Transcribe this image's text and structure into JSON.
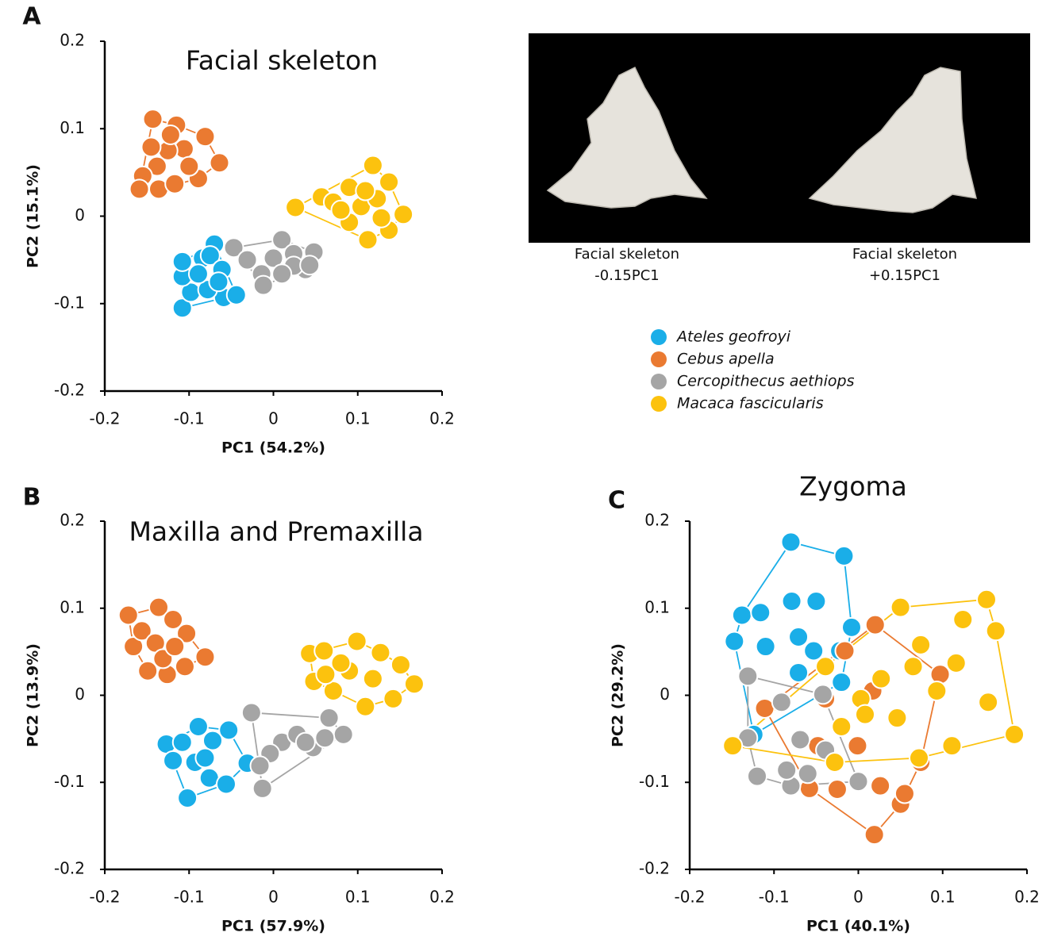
{
  "chart_data": [
    {
      "type": "scatter",
      "panel": "A",
      "title": "Facial skeleton",
      "x_label": "PC1 (54.2%)",
      "y_label": "PC2 (15.1%)",
      "xlim": [
        -0.2,
        0.2
      ],
      "ylim": [
        -0.2,
        0.2
      ],
      "xticks": [
        -0.2,
        -0.1,
        0,
        0.1,
        0.2
      ],
      "yticks": [
        -0.2,
        -0.1,
        0,
        0.1,
        0.2
      ],
      "series": [
        {
          "name": "Ateles geofroyi",
          "color": "#1aaee8",
          "x": [
            -0.108,
            -0.098,
            -0.108,
            -0.108,
            -0.084,
            -0.07,
            -0.075,
            -0.061,
            -0.059,
            -0.044,
            -0.078,
            -0.089,
            -0.065
          ],
          "y": [
            -0.105,
            -0.087,
            -0.069,
            -0.052,
            -0.048,
            -0.032,
            -0.045,
            -0.061,
            -0.093,
            -0.09,
            -0.084,
            -0.066,
            -0.075
          ]
        },
        {
          "name": "Cebus apella",
          "color": "#ea7a31",
          "x": [
            -0.143,
            -0.115,
            -0.081,
            -0.064,
            -0.089,
            -0.106,
            -0.125,
            -0.138,
            -0.155,
            -0.136,
            -0.117,
            -0.1,
            -0.122,
            -0.145,
            -0.159
          ],
          "y": [
            0.111,
            0.104,
            0.091,
            0.061,
            0.043,
            0.077,
            0.075,
            0.057,
            0.046,
            0.031,
            0.037,
            0.057,
            0.093,
            0.079,
            0.031
          ]
        },
        {
          "name": "Cercopithecus aethiops",
          "color": "#a5a5a5",
          "x": [
            -0.047,
            -0.031,
            -0.014,
            -0.012,
            0.01,
            0.024,
            0.048,
            0.038,
            0.024,
            0.0,
            0.01,
            0.043
          ],
          "y": [
            -0.036,
            -0.05,
            -0.066,
            -0.079,
            -0.027,
            -0.043,
            -0.041,
            -0.061,
            -0.057,
            -0.048,
            -0.066,
            -0.056
          ]
        },
        {
          "name": "Macaca fascicularis",
          "color": "#fcc20e",
          "x": [
            0.026,
            0.057,
            0.09,
            0.118,
            0.137,
            0.154,
            0.137,
            0.112,
            0.09,
            0.071,
            0.104,
            0.123,
            0.08,
            0.128,
            0.109
          ],
          "y": [
            0.01,
            0.022,
            0.033,
            0.058,
            0.039,
            0.002,
            -0.016,
            -0.027,
            -0.007,
            0.016,
            0.011,
            0.02,
            0.007,
            -0.002,
            0.029
          ]
        }
      ]
    },
    {
      "type": "scatter",
      "panel": "B",
      "title": "Maxilla and Premaxilla",
      "x_label": "PC1 (57.9%)",
      "y_label": "PC2 (13.9%)",
      "xlim": [
        -0.2,
        0.2
      ],
      "ylim": [
        -0.2,
        0.2
      ],
      "xticks": [
        -0.2,
        -0.1,
        0,
        0.1,
        0.2
      ],
      "yticks": [
        -0.2,
        -0.1,
        0,
        0.1,
        0.2
      ],
      "series": [
        {
          "color": "#1aaee8",
          "x": [
            -0.127,
            -0.102,
            -0.076,
            -0.056,
            -0.031,
            -0.053,
            -0.089,
            -0.108,
            -0.072,
            -0.093,
            -0.119,
            -0.081
          ],
          "y": [
            -0.056,
            -0.118,
            -0.095,
            -0.102,
            -0.078,
            -0.04,
            -0.036,
            -0.054,
            -0.052,
            -0.077,
            -0.075,
            -0.072
          ]
        },
        {
          "color": "#ea7a31",
          "x": [
            -0.172,
            -0.136,
            -0.119,
            -0.103,
            -0.081,
            -0.105,
            -0.126,
            -0.149,
            -0.166,
            -0.156,
            -0.14,
            -0.131,
            -0.117
          ],
          "y": [
            0.092,
            0.101,
            0.087,
            0.071,
            0.044,
            0.033,
            0.024,
            0.028,
            0.056,
            0.074,
            0.06,
            0.042,
            0.056
          ]
        },
        {
          "color": "#a5a5a5",
          "x": [
            -0.026,
            -0.013,
            0.01,
            0.028,
            0.047,
            0.066,
            0.083,
            -0.004,
            0.038,
            0.061,
            -0.016
          ],
          "y": [
            -0.02,
            -0.107,
            -0.054,
            -0.045,
            -0.06,
            -0.026,
            -0.045,
            -0.067,
            -0.054,
            -0.049,
            -0.081
          ]
        },
        {
          "color": "#fcc20e",
          "x": [
            0.043,
            0.06,
            0.099,
            0.127,
            0.151,
            0.167,
            0.142,
            0.109,
            0.071,
            0.048,
            0.09,
            0.118,
            0.08,
            0.062
          ],
          "y": [
            0.048,
            0.051,
            0.062,
            0.049,
            0.035,
            0.013,
            -0.004,
            -0.013,
            0.005,
            0.016,
            0.028,
            0.019,
            0.037,
            0.024
          ]
        }
      ]
    },
    {
      "type": "scatter",
      "panel": "C",
      "title": "Zygoma",
      "x_label": "PC1 (40.1%)",
      "y_label": "PC2 (29.2%)",
      "xlim": [
        -0.2,
        0.2
      ],
      "ylim": [
        -0.2,
        0.2
      ],
      "xticks": [
        -0.2,
        -0.1,
        0,
        0.1,
        0.2
      ],
      "yticks": [
        -0.2,
        -0.1,
        0,
        0.1,
        0.2
      ],
      "series": [
        {
          "color": "#1aaee8",
          "x": [
            -0.08,
            -0.017,
            -0.147,
            -0.138,
            -0.116,
            -0.079,
            -0.05,
            -0.008,
            -0.071,
            -0.053,
            -0.11,
            -0.071,
            -0.022,
            -0.124,
            -0.02
          ],
          "y": [
            0.176,
            0.16,
            0.062,
            0.092,
            0.095,
            0.108,
            0.108,
            0.078,
            0.067,
            0.051,
            0.056,
            0.026,
            0.051,
            -0.045,
            0.015
          ]
        },
        {
          "color": "#ea7a31",
          "x": [
            0.02,
            0.019,
            0.05,
            0.055,
            -0.111,
            -0.058,
            -0.025,
            0.097,
            0.074,
            0.017,
            -0.039,
            -0.001,
            0.026,
            -0.048,
            -0.016
          ],
          "y": [
            0.081,
            -0.16,
            -0.125,
            -0.113,
            -0.015,
            -0.107,
            -0.108,
            0.024,
            -0.077,
            0.005,
            -0.004,
            -0.058,
            -0.104,
            -0.058,
            0.051
          ]
        },
        {
          "color": "#a5a5a5",
          "x": [
            -0.131,
            -0.12,
            -0.08,
            0.0,
            -0.131,
            -0.091,
            -0.042,
            -0.069,
            -0.085,
            -0.06,
            -0.039
          ],
          "y": [
            0.022,
            -0.093,
            -0.104,
            -0.099,
            -0.049,
            -0.008,
            0.001,
            -0.051,
            -0.086,
            -0.09,
            -0.063
          ]
        },
        {
          "color": "#fcc20e",
          "x": [
            -0.149,
            0.185,
            0.152,
            0.05,
            -0.028,
            0.163,
            0.124,
            0.154,
            0.111,
            0.072,
            0.003,
            0.027,
            0.065,
            0.116,
            -0.02,
            -0.039,
            0.008,
            0.093,
            0.046,
            0.074
          ],
          "y": [
            -0.058,
            -0.045,
            0.11,
            0.101,
            -0.077,
            0.074,
            0.087,
            -0.008,
            -0.058,
            -0.072,
            -0.004,
            0.019,
            0.033,
            0.037,
            -0.036,
            0.033,
            -0.022,
            0.005,
            -0.026,
            0.058
          ]
        }
      ]
    }
  ],
  "renderings": [
    {
      "label": "Facial skeleton",
      "shape": "-0.15PC1"
    },
    {
      "label": "Facial skeleton",
      "shape": "+0.15PC1"
    }
  ]
}
